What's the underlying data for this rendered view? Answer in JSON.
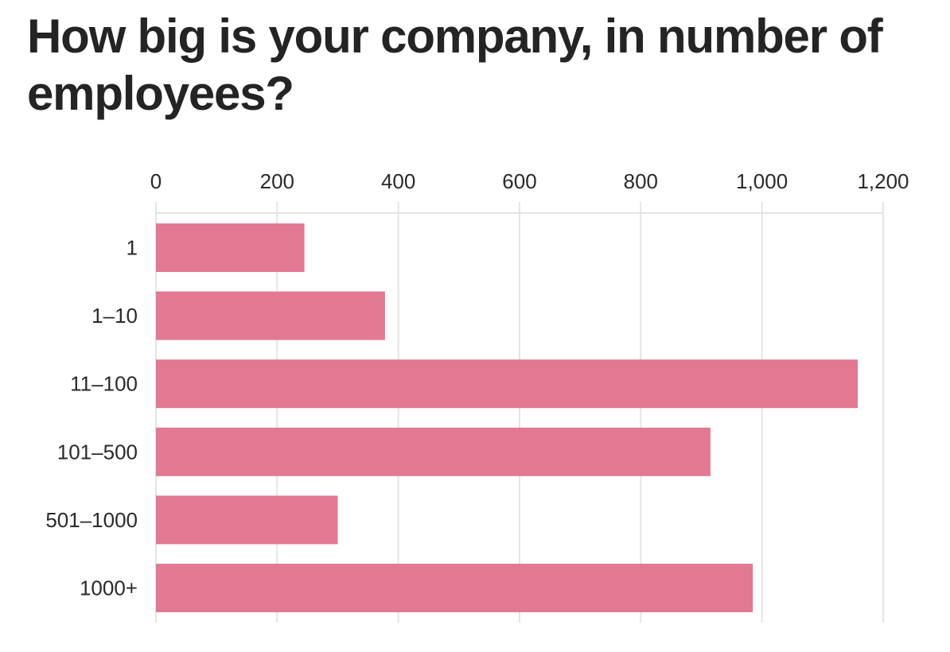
{
  "chart_data": {
    "type": "bar",
    "orientation": "horizontal",
    "title": "How big is your company, in number of employees?",
    "categories": [
      "1",
      "1–10",
      "11–100",
      "101–500",
      "501–1000",
      "1000+"
    ],
    "values": [
      245,
      378,
      1158,
      915,
      300,
      985
    ],
    "xlim": [
      0,
      1200
    ],
    "xticks": [
      0,
      200,
      400,
      600,
      800,
      1000,
      1200
    ],
    "xtick_labels": [
      "0",
      "200",
      "400",
      "600",
      "800",
      "1,000",
      "1,200"
    ],
    "xaxis_position": "top",
    "grid": true,
    "legend": "none",
    "bar_color": "#e37893",
    "grid_color": "#e4e4e4"
  }
}
